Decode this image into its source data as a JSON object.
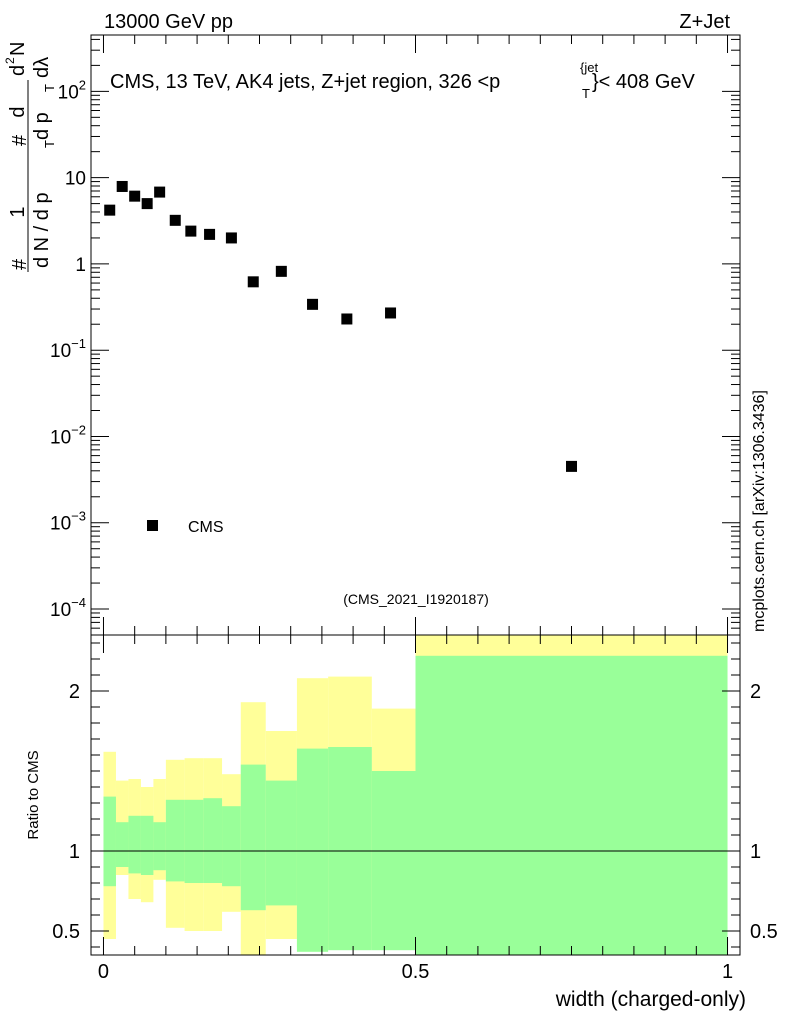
{
  "header": {
    "left": "13000 GeV pp",
    "right": "Z+Jet"
  },
  "side_label": "mcplots.cern.ch [arXiv:1306.3436]",
  "chart_data": [
    {
      "type": "scatter",
      "title": "CMS, 13 TeV, AK4 jets, Z+jet region, 326 <p",
      "title_sup": "{jet",
      "title_sub": "T",
      "title_tail": "}< 408 GeV",
      "watermark": "(CMS_2021_I1920187)",
      "y_scale": "log",
      "ylim": [
        5e-05,
        450
      ],
      "xlim": [
        -0.02,
        1.02
      ],
      "ylabel": {
        "hash_left": "#",
        "frac_num": "1",
        "frac_den": "d N / d p",
        "frac_den_sub": "T",
        "hash_mid": "#",
        "d_num": "d",
        "d_den": "d p",
        "d_den_sub": "T",
        "d_lambda": "dλ",
        "d2n_d": "d",
        "d2n_sup": "2",
        "d2n_n": "N"
      },
      "y_ticks": [
        {
          "value": 100,
          "label": "10",
          "exp": "2"
        },
        {
          "value": 10,
          "label": "10",
          "exp": ""
        },
        {
          "value": 1,
          "label": "1",
          "exp": ""
        },
        {
          "value": 0.1,
          "label": "10",
          "exp": "−1"
        },
        {
          "value": 0.01,
          "label": "10",
          "exp": "−2"
        },
        {
          "value": 0.001,
          "label": "10",
          "exp": "−3"
        },
        {
          "value": 0.0001,
          "label": "10",
          "exp": "−4"
        }
      ],
      "legend": {
        "label": "CMS",
        "placement": "bottom-left"
      },
      "series": [
        {
          "name": "CMS",
          "x": [
            0.01,
            0.03,
            0.05,
            0.07,
            0.09,
            0.115,
            0.14,
            0.17,
            0.205,
            0.24,
            0.285,
            0.335,
            0.39,
            0.46,
            0.75
          ],
          "y": [
            4.2,
            7.9,
            6.1,
            5.0,
            6.8,
            3.2,
            2.4,
            2.2,
            2.0,
            0.62,
            0.82,
            0.34,
            0.23,
            0.27,
            0.0045
          ]
        }
      ]
    },
    {
      "type": "area",
      "ylabel": "Ratio to CMS",
      "xlabel": "width (charged-only)",
      "xlim": [
        -0.02,
        1.02
      ],
      "ylim": [
        0.35,
        2.35
      ],
      "reference_line": 1,
      "x_ticks": [
        {
          "value": 0,
          "label": "0"
        },
        {
          "value": 0.5,
          "label": "0.5"
        },
        {
          "value": 1,
          "label": "1"
        }
      ],
      "y_ticks": [
        {
          "value": 2,
          "label": "2"
        },
        {
          "value": 1,
          "label": "1"
        },
        {
          "value": 0.5,
          "label": "0.5"
        }
      ],
      "colors": {
        "outer": "#ffff99",
        "inner": "#99ff99",
        "line": "#000000"
      },
      "bins": {
        "edges": [
          0,
          0.02,
          0.04,
          0.06,
          0.08,
          0.1,
          0.13,
          0.16,
          0.19,
          0.22,
          0.26,
          0.31,
          0.36,
          0.43,
          0.5,
          1.0
        ],
        "outer_lo": [
          0.45,
          0.85,
          0.7,
          0.68,
          0.82,
          0.52,
          0.5,
          0.5,
          0.62,
          0.3,
          0.45,
          0.4,
          0.39,
          0.62,
          0.3
        ],
        "outer_hi": [
          1.62,
          1.44,
          1.45,
          1.4,
          1.45,
          1.57,
          1.58,
          1.58,
          1.48,
          1.93,
          1.75,
          2.08,
          2.09,
          1.89,
          2.4
        ],
        "inner_lo": [
          0.78,
          0.9,
          0.86,
          0.85,
          0.88,
          0.81,
          0.8,
          0.8,
          0.78,
          0.63,
          0.66,
          0.37,
          0.38,
          0.38,
          0.3
        ],
        "inner_hi": [
          1.34,
          1.18,
          1.22,
          1.22,
          1.18,
          1.32,
          1.32,
          1.33,
          1.28,
          1.54,
          1.44,
          1.64,
          1.65,
          1.5,
          2.22
        ]
      }
    }
  ]
}
